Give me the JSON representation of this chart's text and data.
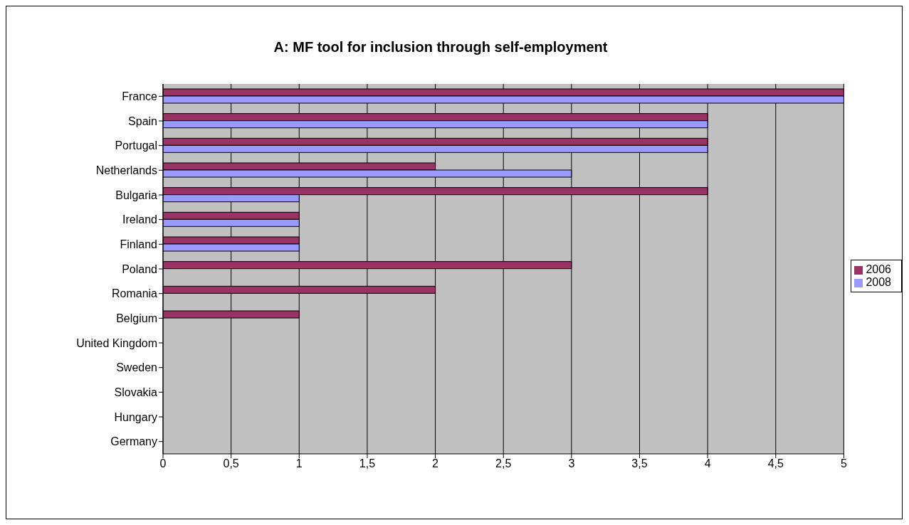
{
  "chart_data": {
    "type": "bar",
    "orientation": "horizontal",
    "title": "A: MF tool for inclusion through self-employment",
    "categories": [
      "France",
      "Spain",
      "Portugal",
      "Netherlands",
      "Bulgaria",
      "Ireland",
      "Finland",
      "Poland",
      "Romania",
      "Belgium",
      "United Kingdom",
      "Sweden",
      "Slovakia",
      "Hungary",
      "Germany"
    ],
    "series": [
      {
        "name": "2006",
        "color": "#993366",
        "values": [
          5,
          4,
          4,
          2,
          4,
          1,
          1,
          3,
          2,
          1,
          0,
          0,
          0,
          0,
          0
        ]
      },
      {
        "name": "2008",
        "color": "#9999ff",
        "values": [
          5,
          4,
          4,
          3,
          1,
          1,
          1,
          0,
          0,
          0,
          0,
          0,
          0,
          0,
          0
        ]
      }
    ],
    "xlim": [
      0,
      5
    ],
    "xticks": [
      0,
      {
        "value": 0.5,
        "label": "0,5"
      },
      1,
      {
        "value": 1.5,
        "label": "1,5"
      },
      2,
      {
        "value": 2.5,
        "label": "2,5"
      },
      3,
      {
        "value": 3.5,
        "label": "3,5"
      },
      4,
      {
        "value": 4.5,
        "label": "4,5"
      },
      5
    ],
    "grid": "x",
    "legend": "right"
  }
}
